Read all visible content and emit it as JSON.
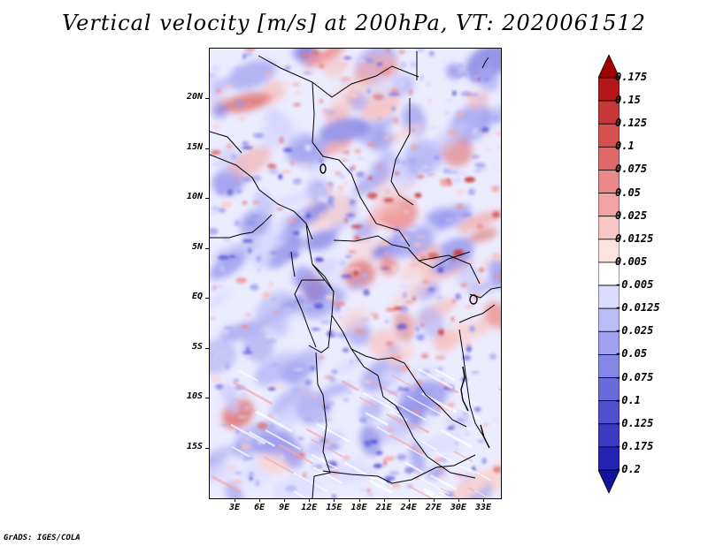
{
  "title": "Vertical velocity [m/s] at 200hPa, VT: 2020061512",
  "map": {
    "latitude_labels": [
      "20N",
      "15N",
      "10N",
      "5N",
      "EQ",
      "5S",
      "10S",
      "15S"
    ],
    "longitude_labels": [
      "3E",
      "6E",
      "9E",
      "12E",
      "15E",
      "18E",
      "21E",
      "24E",
      "27E",
      "30E",
      "33E"
    ]
  },
  "legend": {
    "levels": [
      "0.175",
      "0.15",
      "0.125",
      "0.1",
      "0.075",
      "0.05",
      "0.025",
      "0.0125",
      "0.005",
      "-0.005",
      "-0.0125",
      "-0.025",
      "-0.05",
      "-0.075",
      "-0.1",
      "-0.125",
      "-0.175",
      "-0.2"
    ],
    "colors": [
      "#a00000",
      "#b51717",
      "#c83838",
      "#d85151",
      "#e06a6a",
      "#e98888",
      "#f2a3a3",
      "#f8c6c6",
      "#fde2e2",
      "#ffffff",
      "#dcdcff",
      "#bcbcf8",
      "#a1a1f0",
      "#8686e6",
      "#6b6bdc",
      "#5151d0",
      "#3a3ac3",
      "#2323b5",
      "#14149e"
    ]
  },
  "footer": "GrADS: IGES/COLA"
}
